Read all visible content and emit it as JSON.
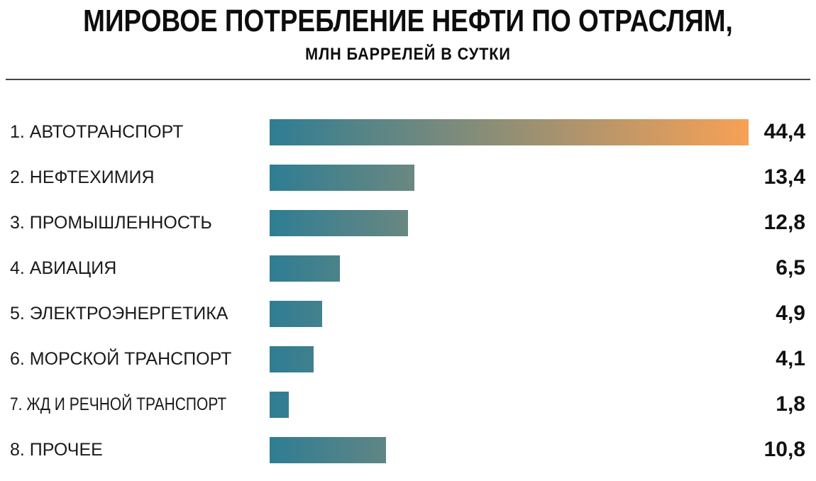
{
  "title": "МИРОВОЕ ПОТРЕБЛЕНИЕ НЕФТИ ПО ОТРАСЛЯМ,",
  "subtitle": "МЛН БАРРЕЛЕЙ В СУТКИ",
  "colors": {
    "bar_gradient_start": "#2E7D93",
    "bar_gradient_end": "#F7A156",
    "text": "#0d0d0d",
    "divider": "#454545"
  },
  "chart_data": {
    "type": "bar",
    "orientation": "horizontal",
    "title": "МИРОВОЕ ПОТРЕБЛЕНИЕ НЕФТИ ПО ОТРАСЛЯМ,",
    "subtitle": "МЛН БАРРЕЛЕЙ В СУТКИ",
    "units": "млн баррелей в сутки",
    "categories": [
      "1. АВТОТРАНСПОРТ",
      "2. НЕФТЕХИМИЯ",
      "3. ПРОМЫШЛЕННОСТЬ",
      "4. АВИАЦИЯ",
      "5. ЭЛЕКТРОЭНЕРГЕТИКА",
      "6. МОРСКОЙ ТРАНСПОРТ",
      "7. ЖД И РЕЧНОЙ ТРАНСПОРТ",
      "8. ПРОЧЕЕ"
    ],
    "values": [
      44.4,
      13.4,
      12.8,
      6.5,
      4.9,
      4.1,
      1.8,
      10.8
    ],
    "value_labels": [
      "44,4",
      "13,4",
      "12,8",
      "6,5",
      "4,9",
      "4,1",
      "1,8",
      "10,8"
    ],
    "xlim": [
      0,
      44.4
    ],
    "grid": false,
    "legend": false,
    "bar_gradient": [
      "#2E7D93",
      "#F7A156"
    ],
    "gradient_note": "single shared gradient spans the full 0-44.4 scale; each bar reveals only its left portion"
  }
}
